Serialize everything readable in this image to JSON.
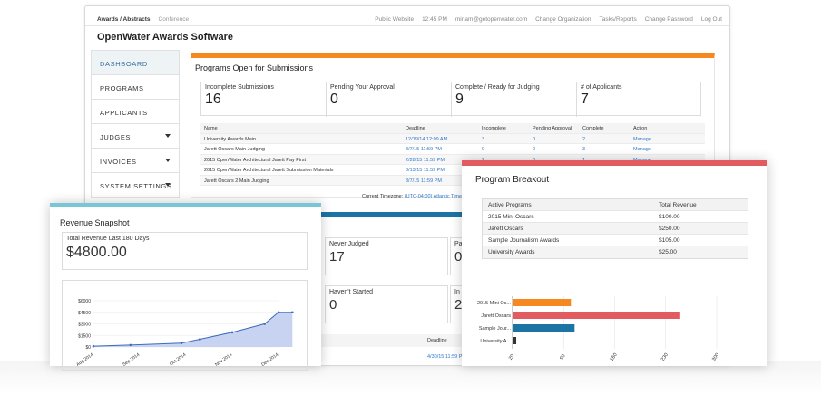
{
  "topnav": {
    "left": [
      "Awards / Abstracts",
      "Conference"
    ],
    "right": [
      "Public Website",
      "12:45 PM",
      "miriam@getopenwater.com",
      "Change Organization",
      "Tasks/Reports",
      "Change Password",
      "Log Out"
    ]
  },
  "app_title": "OpenWater Awards Software",
  "sidebar": [
    "DASHBOARD",
    "PROGRAMS",
    "APPLICANTS",
    "JUDGES",
    "INVOICES",
    "SYSTEM SETTINGS"
  ],
  "programs_panel": {
    "title": "Programs Open for Submissions",
    "accent": "#f5891f",
    "stats": [
      {
        "label": "Incomplete Submissions",
        "value": "16"
      },
      {
        "label": "Pending Your Approval",
        "value": "0"
      },
      {
        "label": "Complete / Ready for Judging",
        "value": "9"
      },
      {
        "label": "# of Applicants",
        "value": "7"
      }
    ],
    "columns": [
      "Name",
      "Deadline",
      "Incomplete",
      "Pending Approval",
      "Complete",
      "Action"
    ],
    "rows": [
      [
        "University Awards Main",
        "12/19/14 12:09 AM",
        "3",
        "0",
        "2",
        "Manage"
      ],
      [
        "Jarett Oscars Main Judging",
        "3/7/15 11:59 PM",
        "9",
        "0",
        "3",
        "Manage"
      ],
      [
        "2015 OpenWater Architectural Jarett Pay First",
        "2/28/15 11:59 PM",
        "2",
        "0",
        "1",
        "Manage"
      ],
      [
        "2015 OpenWater Architectural Jarett Submission Materials",
        "3/13/15 11:59 PM",
        "",
        "",
        "",
        ""
      ],
      [
        "Jarett Oscars 2 Main Judging",
        "3/7/15 11:59 PM",
        "",
        "",
        "",
        ""
      ]
    ],
    "timezone_label": "Current Timezone:",
    "timezone_value": "(UTC-04:00) Atlantic Time (Ca"
  },
  "judging_panel": {
    "accent": "#1c74a4",
    "stats": [
      {
        "label": "Never Judged",
        "value": "17"
      },
      {
        "label": "Pa",
        "value": "0"
      },
      {
        "label": "Haven't Started",
        "value": "0"
      },
      {
        "label": "In",
        "value": "2"
      }
    ],
    "deadline_header": "Deadline",
    "deadline_value": "4/30/15 11:59 PM"
  },
  "revenue_card": {
    "title": "Revenue Snapshot",
    "accent": "#79c7d6",
    "total_label": "Total Revenue Last 180 Days",
    "total_value": "$4800.00"
  },
  "program_card": {
    "title": "Program Breakout",
    "accent": "#e25b61",
    "columns": [
      "Active Programs",
      "Total Revenue"
    ],
    "rows": [
      [
        "2015 Mini Oscars",
        "$100.00"
      ],
      [
        "Jarett Oscars",
        "$250.00"
      ],
      [
        "Sample Journalism Awards",
        "$105.00"
      ],
      [
        "University Awards",
        "$25.00"
      ]
    ]
  },
  "chart_data": [
    {
      "type": "area",
      "x": [
        "Aug 2014",
        "Sep 2014",
        "Oct 2014",
        "Nov 2014",
        "Dec 2014"
      ],
      "series": [
        {
          "points": [
            [
              0,
              100
            ],
            [
              0.8,
              250
            ],
            [
              1.9,
              500
            ],
            [
              2.3,
              1000
            ],
            [
              3.0,
              1900
            ],
            [
              3.7,
              3000
            ],
            [
              4.0,
              4500
            ],
            [
              4.3,
              4500
            ]
          ],
          "color": "#3d6bbf"
        }
      ],
      "yticks": [
        "$0",
        "$1500",
        "$3000",
        "$4500",
        "$6000"
      ],
      "ylim": [
        0,
        6000
      ]
    },
    {
      "type": "bar",
      "orientation": "horizontal",
      "categories": [
        "2015 Mini Os...",
        "Jarett Oscars",
        "Sample Jour...",
        "University A..."
      ],
      "values": [
        100,
        250,
        105,
        25
      ],
      "colors": [
        "#f5891f",
        "#e25b61",
        "#1c74a4",
        "#333333"
      ],
      "xticks": [
        "20",
        "90",
        "160",
        "230",
        "300"
      ],
      "xlim": [
        20,
        300
      ]
    }
  ]
}
